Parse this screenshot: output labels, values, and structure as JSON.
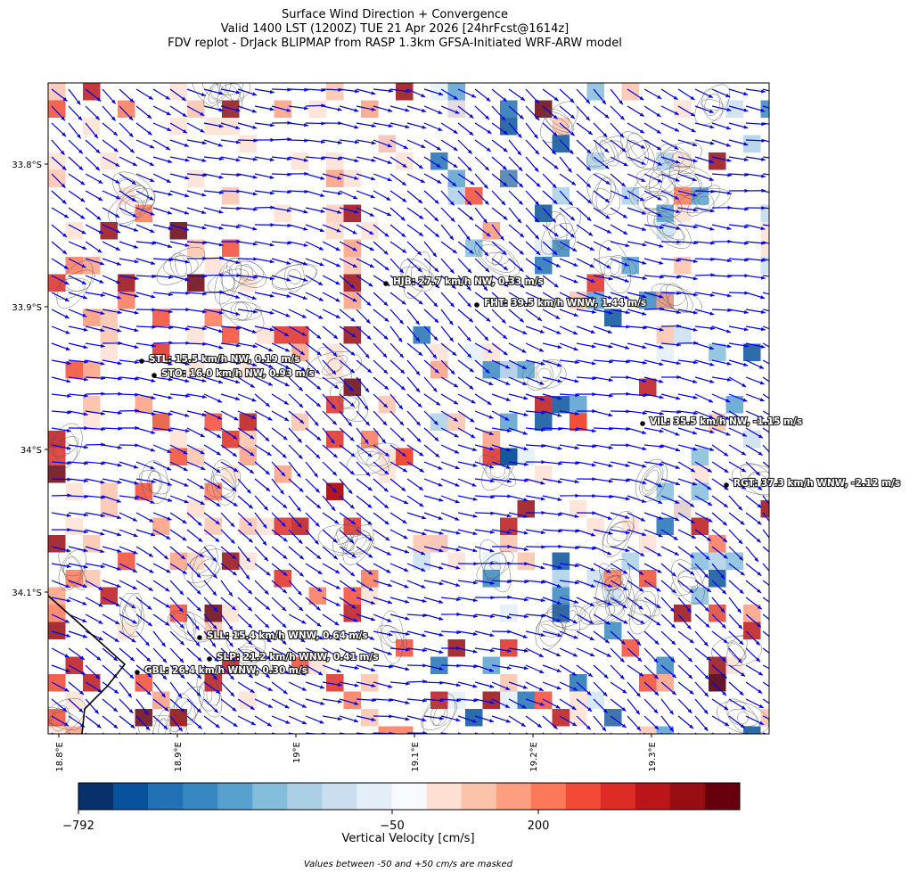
{
  "title": [
    "Surface Wind Direction + Convergence",
    "Valid 1400 LST (1200Z) TUE 21 Apr 2026 [24hrFcst@1614z]",
    "FDV replot - DrJack BLIPMAP from RASP 1.3km GFSA-Initiated WRF-ARW model"
  ],
  "map": {
    "lat_ticks": [
      "33.8°S",
      "33.9°S",
      "34°S",
      "34.1°S"
    ],
    "lon_ticks": [
      "18.8°E",
      "18.9°E",
      "19°E",
      "19.1°E",
      "19.2°E",
      "19.3°E"
    ],
    "stations": [
      {
        "label": "HJB: 27.7 km/h NW, 0.33 m/s"
      },
      {
        "label": "FHT: 39.5 km/h WNW, 1.44 m/s"
      },
      {
        "label": "STL: 15.5 km/h NW, 0.19 m/s"
      },
      {
        "label": "STO: 16.0 km/h NW, 0.93 m/s"
      },
      {
        "label": "VIL: 35.5 km/h NW, -1.15 m/s"
      },
      {
        "label": "RGT: 37.3 km/h WNW, -2.12 m/s"
      },
      {
        "label": "SLL: 15.4 km/h WNW, 0.64 m/s"
      },
      {
        "label": "SLP: 21.2 km/h WNW, 0.41 m/s"
      },
      {
        "label": "GBL: 26.4 km/h WNW, 0.30 m/s"
      }
    ]
  },
  "colorbar": {
    "colors": [
      "#08306b",
      "#08519c",
      "#2171b5",
      "#3787c0",
      "#58a1cf",
      "#84bcdb",
      "#abd0e6",
      "#cadef0",
      "#e3eef9",
      "#f7fbff",
      "#fee0d2",
      "#fcc3ab",
      "#fc9f81",
      "#fb7858",
      "#f24a36",
      "#de2b25",
      "#bb151a",
      "#980c13",
      "#67000d"
    ],
    "tick_labels": [
      "−792",
      "−50",
      "200"
    ],
    "label": "Vertical Velocity [cm/s]"
  },
  "note": "Values between -50 and +50 cm/s are masked"
}
